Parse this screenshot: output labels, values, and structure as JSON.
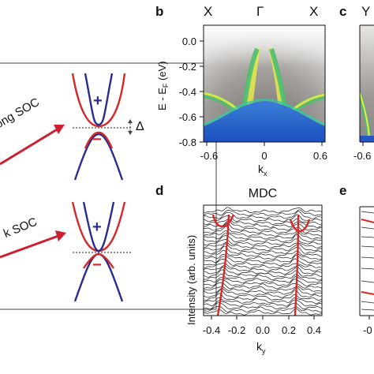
{
  "panel_a": {
    "top_arrow_label": "ong SOC",
    "bottom_arrow_label": "k SOC",
    "top_gap_label": "Δ",
    "plus_sign": "+",
    "minus_sign": "−",
    "colors": {
      "band_outer": "#d62828",
      "band_inner": "#2b2b8f",
      "arrow": "#cc1f2f"
    }
  },
  "panel_b": {
    "letter": "b",
    "top_labels": [
      "X",
      "Γ",
      "X"
    ],
    "y_axis_label": "E - E",
    "y_axis_subscript": "F",
    "y_axis_unit": " (eV)",
    "y_ticks": [
      "0.0",
      "-0.2",
      "-0.4",
      "-0.6",
      "-0.8"
    ],
    "x_ticks": [
      "-0.6",
      "0",
      "0.6"
    ],
    "x_axis_label": "k",
    "x_axis_subscript": "x"
  },
  "panel_c": {
    "letter": "c",
    "top_label_partial": "Y",
    "x_tick_partial": "-0.6"
  },
  "panel_d": {
    "letter": "d",
    "title": "MDC",
    "y_axis_label": "Intensity (arb. units)",
    "x_ticks": [
      "-0.4",
      "-0.2",
      "0.0",
      "0.2",
      "0.4"
    ],
    "x_axis_label": "k",
    "x_axis_subscript": "y"
  },
  "panel_e": {
    "letter": "e",
    "x_tick_partial": "-0"
  }
}
